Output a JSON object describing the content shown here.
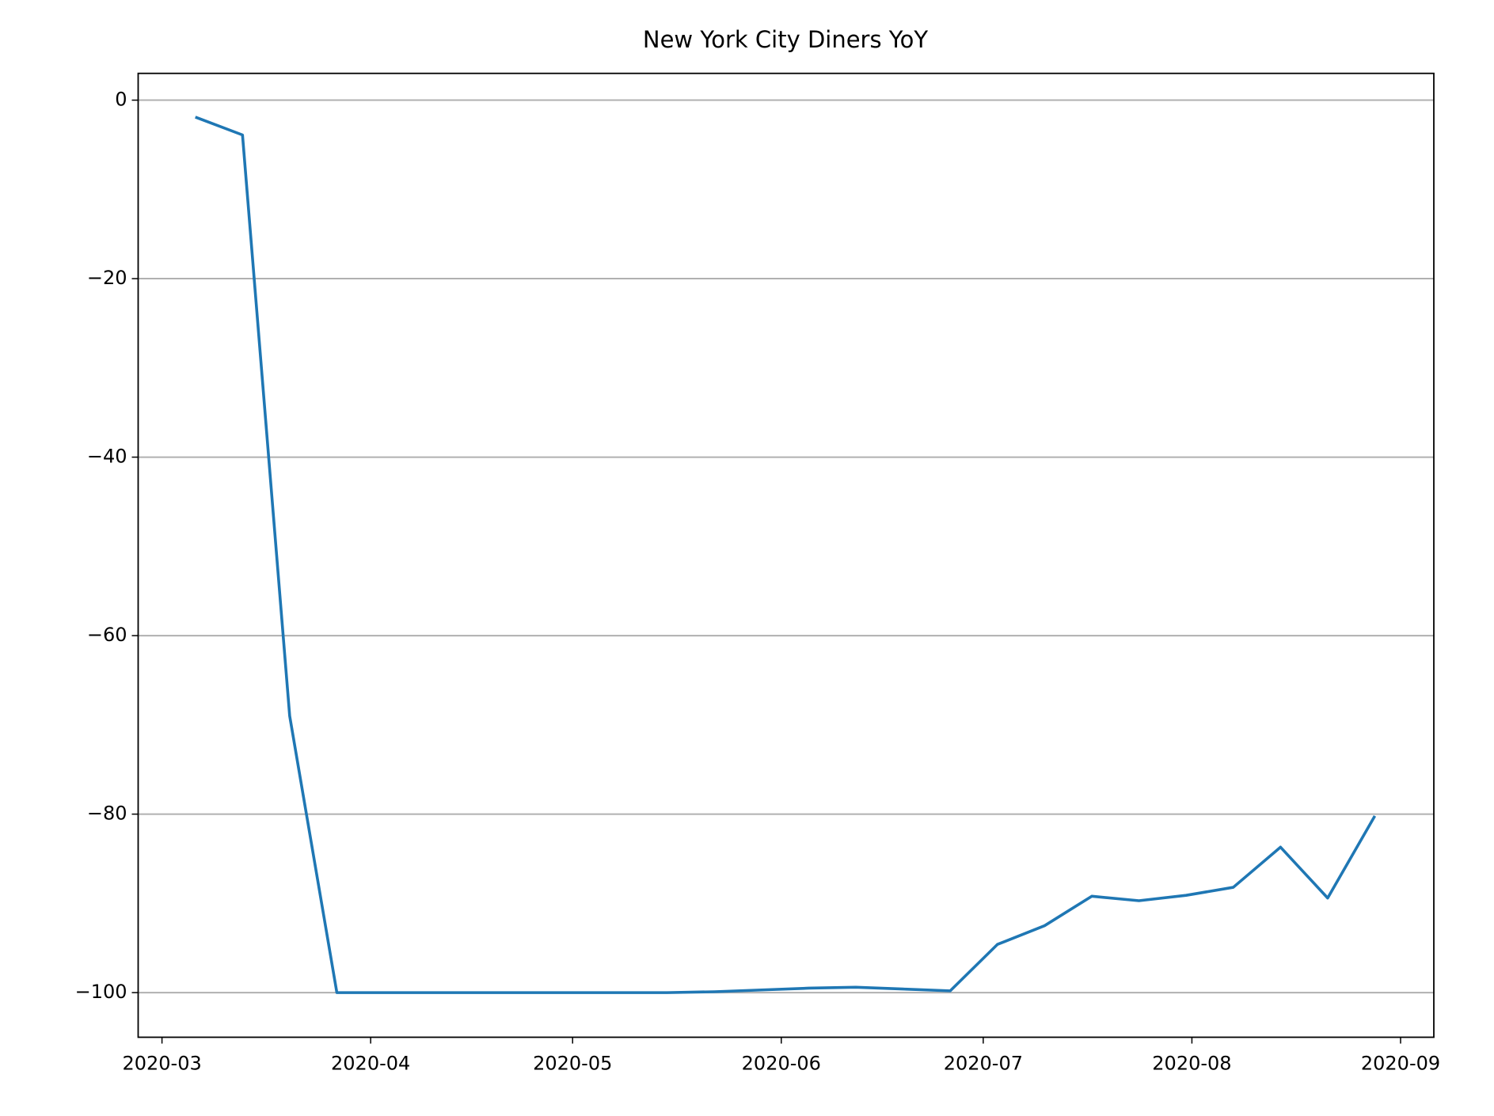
{
  "chart_data": {
    "type": "line",
    "title": "New York City Diners YoY",
    "series": [
      {
        "color": "#1f77b4",
        "values": [
          -1.9,
          -3.9,
          -69,
          -100,
          -100,
          -100,
          -100,
          -100,
          -100,
          -100,
          -100,
          -99.9,
          -99.7,
          -99.5,
          -99.4,
          -99.6,
          -99.8,
          -94.6,
          -92.5,
          -89.2,
          -89.7,
          -89.1,
          -88.2,
          -83.7,
          -89.4,
          -80.2
        ]
      }
    ],
    "xticks": [
      "2020-03",
      "2020-04",
      "2020-05",
      "2020-06",
      "2020-07",
      "2020-08",
      "2020-09"
    ],
    "ylim": [
      -105,
      3
    ],
    "yticks": [
      {
        "value": -100,
        "label": "−100"
      },
      {
        "value": -80,
        "label": "−80"
      },
      {
        "value": -60,
        "label": "−60"
      },
      {
        "value": -40,
        "label": "−40"
      },
      {
        "value": -20,
        "label": "−20"
      },
      0
    ],
    "grid": true
  }
}
